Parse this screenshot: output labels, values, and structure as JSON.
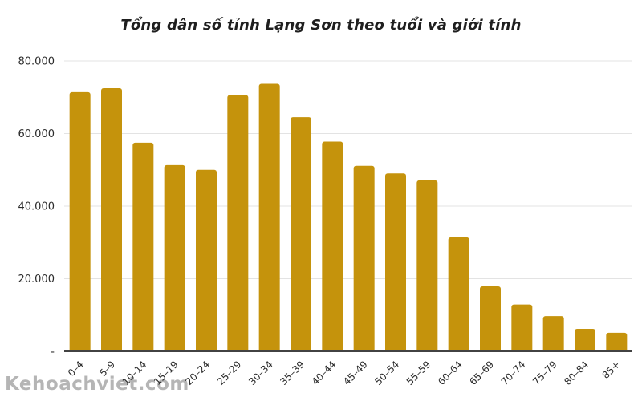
{
  "watermark": "Kehoachviet.com",
  "chart_data": {
    "type": "bar",
    "title": "Tổng dân số tỉnh Lạng Sơn theo tuổi và giới tính",
    "xlabel": "",
    "ylabel": "",
    "categories": [
      "0–4",
      "5–9",
      "10–14",
      "15–19",
      "20–24",
      "25–29",
      "30–34",
      "35–39",
      "40–44",
      "45–49",
      "50–54",
      "55–59",
      "60–64",
      "65–69",
      "70–74",
      "75–79",
      "80–84",
      "85+"
    ],
    "values": [
      71400,
      72500,
      57500,
      51300,
      50000,
      70600,
      73700,
      64500,
      57800,
      51100,
      49000,
      47100,
      31400,
      17900,
      12900,
      9700,
      6200,
      5100
    ],
    "ylim": [
      0,
      80000
    ],
    "y_ticks": [
      {
        "value": 0,
        "label": "-"
      },
      {
        "value": 20000,
        "label": "20.000"
      },
      {
        "value": 40000,
        "label": "40.000"
      },
      {
        "value": 60000,
        "label": "60.000"
      },
      {
        "value": 80000,
        "label": "80.000"
      }
    ],
    "grid": true,
    "legend_position": "none"
  },
  "colors": {
    "bar": "#c5930c",
    "grid": "#e3e3e3",
    "axis": "#424242",
    "tick_text": "#2b2b2b",
    "title_text": "#1f1f1f",
    "watermark": "#b5b5b5",
    "background": "#ffffff"
  }
}
